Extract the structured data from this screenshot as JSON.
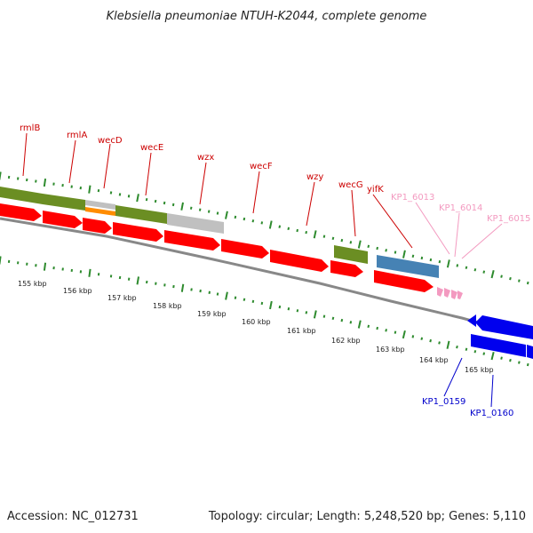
{
  "title": "Klebsiella pneumoniae NTUH-K2044, complete genome",
  "footer": {
    "accession": "Accession: NC_012731",
    "topology": "Topology: circular; Length: 5,248,520 bp; Genes: 5,110"
  },
  "colors": {
    "gene_label_red": "#cc0000",
    "gene_label_pink": "#f39ac0",
    "gene_label_blue": "#0000cc",
    "tick_green": "#2e8b2e",
    "forward_cds_red": "#ff0000",
    "reverse_cds_blue": "#0000ee",
    "olive_feature": "#6b8e23",
    "grey_feature": "#c0c0c0",
    "orange_feature": "#ff8c00",
    "steel_feature": "#4682b4",
    "backbone_grey": "#888888"
  },
  "kbp_ticks": [
    "155 kbp",
    "156 kbp",
    "157 kbp",
    "158 kbp",
    "159 kbp",
    "160 kbp",
    "161 kbp",
    "162 kbp",
    "163 kbp",
    "164 kbp",
    "165 kbp"
  ],
  "gene_labels": [
    {
      "text": "rmlB",
      "color": "red"
    },
    {
      "text": "rmlA",
      "color": "red"
    },
    {
      "text": "wecD",
      "color": "red"
    },
    {
      "text": "wecE",
      "color": "red"
    },
    {
      "text": "wzx",
      "color": "red"
    },
    {
      "text": "wecF",
      "color": "red"
    },
    {
      "text": "wzy",
      "color": "red"
    },
    {
      "text": "wecG",
      "color": "red"
    },
    {
      "text": "yifK",
      "color": "red"
    },
    {
      "text": "KP1_6013",
      "color": "pink"
    },
    {
      "text": "KP1_6014",
      "color": "pink"
    },
    {
      "text": "KP1_6015",
      "color": "pink"
    },
    {
      "text": "KP1_0159",
      "color": "blue"
    },
    {
      "text": "KP1_0160",
      "color": "blue"
    }
  ]
}
